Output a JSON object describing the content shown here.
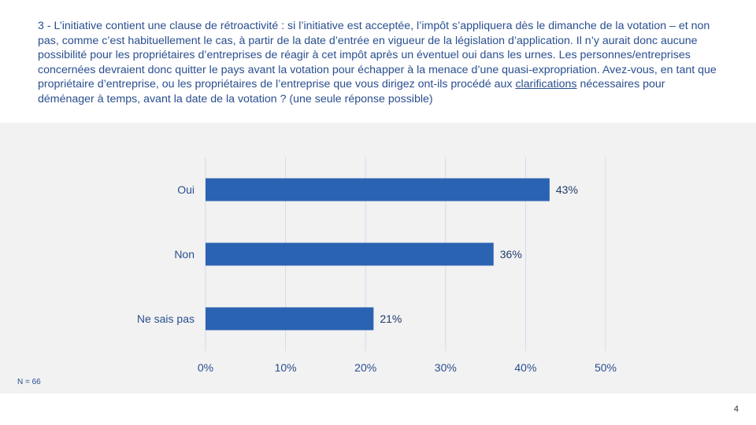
{
  "slide": {
    "question_part1": "3 - L’initiative contient une clause de rétroactivité : si l’initiative est acceptée, l’impôt s’appliquera dès le dimanche de la votation – et non pas, comme c’est habituellement le cas, à partir de la date d’entrée en vigueur de la législation d’application. Il n’y aurait donc aucune possibilité pour les propriétaires d’entreprises de réagir à cet impôt après un éventuel oui dans les urnes. Les personnes/entreprises concernées devraient donc quitter le pays avant la votation pour échapper à la menace d’une quasi-expropriation. Avez-vous, en tant que propriétaire d’entreprise, ou les propriétaires de l’entreprise que vous dirigez ont-ils procédé aux ",
    "question_underlined": "clarifications",
    "question_part2": " nécessaires pour déménager à temps, avant la date de la votation ? (une seule réponse possible)",
    "sample_size": "N = 66",
    "page_number": "4"
  },
  "colors": {
    "bar": "#2b63b3",
    "text": "#2a4f8f",
    "grid": "#d3dbe8",
    "panel": "#f2f2f2"
  },
  "chart_data": {
    "type": "bar",
    "orientation": "horizontal",
    "categories": [
      "Oui",
      "Non",
      "Ne sais pas"
    ],
    "values": [
      43,
      36,
      21
    ],
    "data_labels": [
      "43%",
      "36%",
      "21%"
    ],
    "x_ticks": [
      "0%",
      "10%",
      "20%",
      "30%",
      "40%",
      "50%"
    ],
    "xlim": [
      0,
      50
    ],
    "grid": true,
    "title": "",
    "xlabel": "",
    "ylabel": ""
  }
}
